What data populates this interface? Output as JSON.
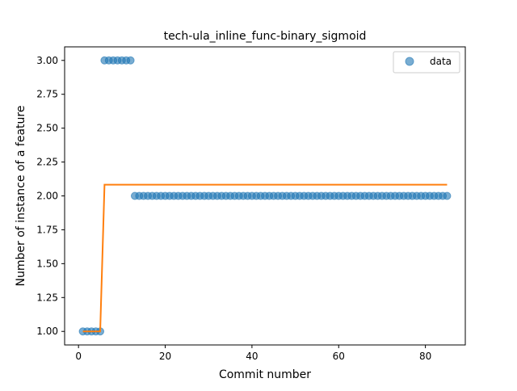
{
  "chart_data": {
    "type": "scatter",
    "title": "tech-ula_inline_func-binary_sigmoid",
    "xlabel": "Commit number",
    "ylabel": "Number of instance of a feature",
    "xlim": [
      -3.2,
      89.2
    ],
    "ylim": [
      0.9,
      3.1
    ],
    "x_ticks": [
      0,
      20,
      40,
      60,
      80
    ],
    "y_ticks": [
      1.0,
      1.25,
      1.5,
      1.75,
      2.0,
      2.25,
      2.5,
      2.75,
      3.0
    ],
    "x_tick_labels": [
      "0",
      "20",
      "40",
      "60",
      "80"
    ],
    "y_tick_labels": [
      "1.00",
      "1.25",
      "1.50",
      "1.75",
      "2.00",
      "2.25",
      "2.50",
      "2.75",
      "3.00"
    ],
    "legend": {
      "position": "top-right",
      "entries": [
        "data"
      ]
    },
    "grid": false,
    "colors": {
      "data": "#1f77b4",
      "fit": "#ff7f0e"
    },
    "series": [
      {
        "name": "data",
        "kind": "scatter",
        "x": [
          1,
          2,
          3,
          4,
          5,
          6,
          7,
          8,
          9,
          10,
          11,
          12,
          13,
          14,
          15,
          16,
          17,
          18,
          19,
          20,
          21,
          22,
          23,
          24,
          25,
          26,
          27,
          28,
          29,
          30,
          31,
          32,
          33,
          34,
          35,
          36,
          37,
          38,
          39,
          40,
          41,
          42,
          43,
          44,
          45,
          46,
          47,
          48,
          49,
          50,
          51,
          52,
          53,
          54,
          55,
          56,
          57,
          58,
          59,
          60,
          61,
          62,
          63,
          64,
          65,
          66,
          67,
          68,
          69,
          70,
          71,
          72,
          73,
          74,
          75,
          76,
          77,
          78,
          79,
          80,
          81,
          82,
          83,
          84,
          85
        ],
        "y": [
          1,
          1,
          1,
          1,
          1,
          3,
          3,
          3,
          3,
          3,
          3,
          3,
          2,
          2,
          2,
          2,
          2,
          2,
          2,
          2,
          2,
          2,
          2,
          2,
          2,
          2,
          2,
          2,
          2,
          2,
          2,
          2,
          2,
          2,
          2,
          2,
          2,
          2,
          2,
          2,
          2,
          2,
          2,
          2,
          2,
          2,
          2,
          2,
          2,
          2,
          2,
          2,
          2,
          2,
          2,
          2,
          2,
          2,
          2,
          2,
          2,
          2,
          2,
          2,
          2,
          2,
          2,
          2,
          2,
          2,
          2,
          2,
          2,
          2,
          2,
          2,
          2,
          2,
          2,
          2,
          2,
          2,
          2,
          2,
          2
        ]
      },
      {
        "kind": "line",
        "x": [
          1,
          5,
          6,
          85
        ],
        "y": [
          1.0,
          1.0,
          2.083,
          2.083
        ]
      }
    ]
  }
}
